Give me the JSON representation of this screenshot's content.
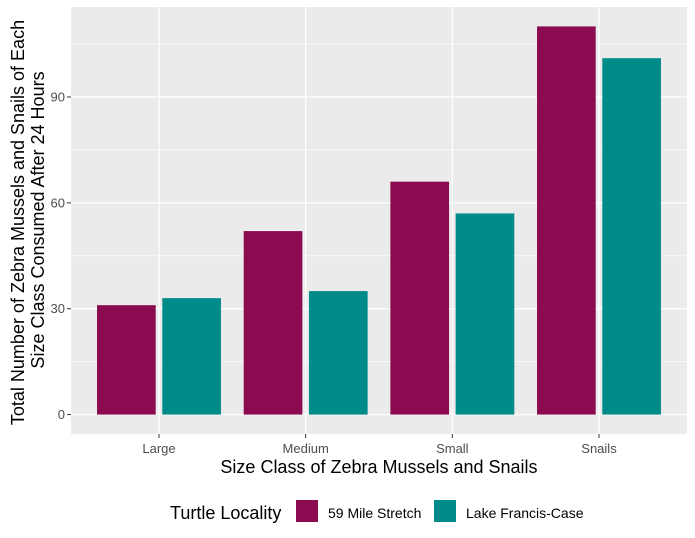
{
  "chart_data": {
    "type": "bar",
    "title": "",
    "xlabel": "Size Class of Zebra Mussels and Snails",
    "ylabel_lines": [
      "Total Number of Zebra Mussels and Snails of Each",
      "Size Class Consumed After 24 Hours"
    ],
    "categories": [
      "Large",
      "Medium",
      "Small",
      "Snails"
    ],
    "series": [
      {
        "name": "59 Mile Stretch",
        "color": "#8B0A50",
        "values": [
          31,
          52,
          66,
          110
        ]
      },
      {
        "name": "Lake Francis-Case",
        "color": "#008B8B",
        "values": [
          33,
          35,
          57,
          101
        ]
      }
    ],
    "ylim": [
      -5.5,
      115.5
    ],
    "y_ticks": [
      0,
      30,
      60,
      90
    ],
    "grid": true,
    "panel_color": "#EBEBEB",
    "legend": {
      "title": "Turtle Locality",
      "position": "bottom"
    }
  }
}
